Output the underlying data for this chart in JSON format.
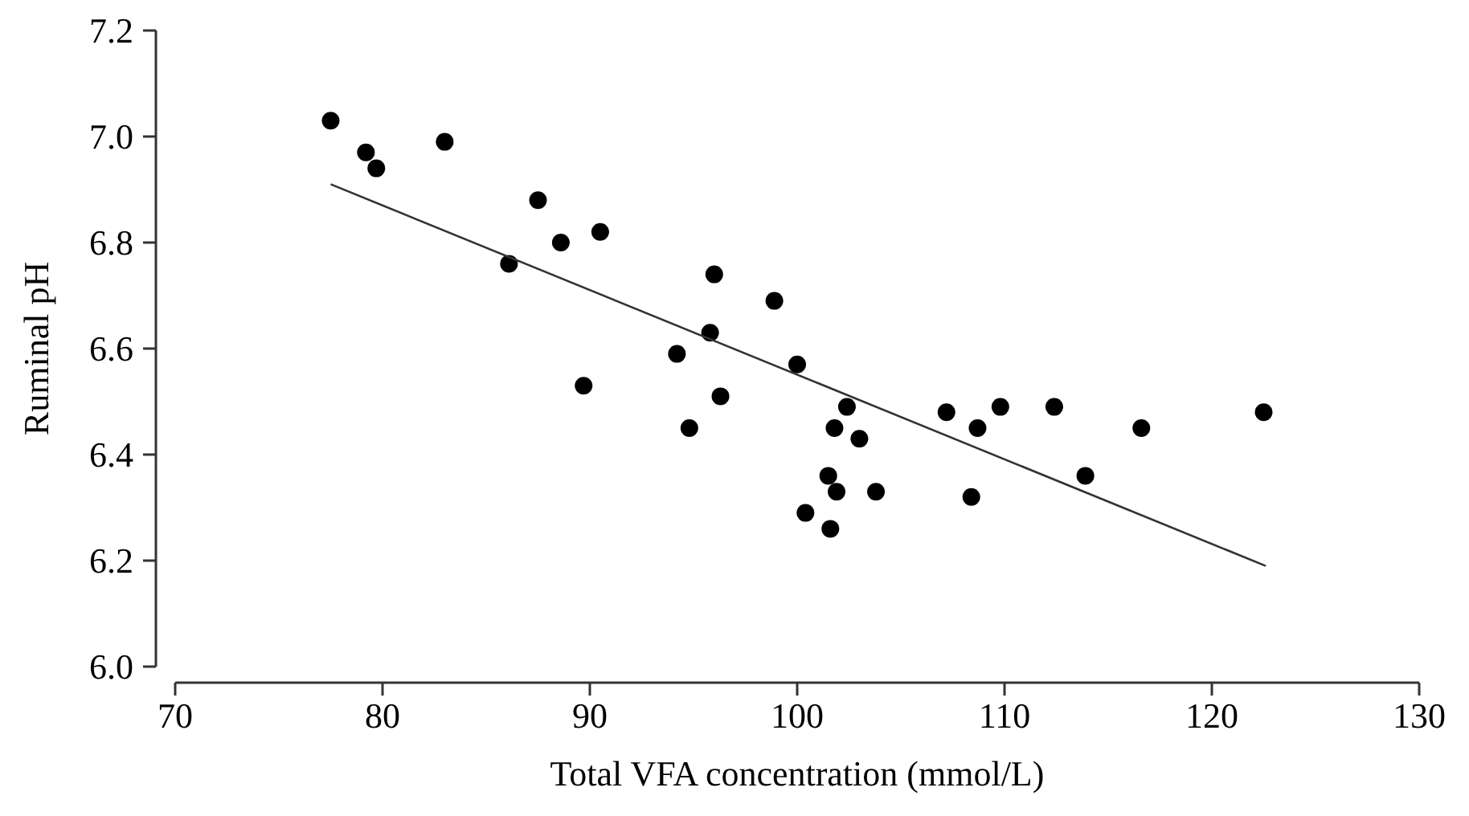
{
  "chart_data": {
    "type": "scatter",
    "xlabel": "Total VFA concentration (mmol/L)",
    "ylabel": "Ruminal pH",
    "xlim": [
      70,
      130
    ],
    "xticks": [
      70,
      80,
      90,
      100,
      110,
      120,
      130
    ],
    "ylim": [
      6.0,
      7.2
    ],
    "yticks": [
      {
        "value": 6.0,
        "label": "6.0"
      },
      6.2,
      6.4,
      6.6,
      6.8,
      {
        "value": 7.0,
        "label": "7.0"
      },
      7.2
    ],
    "grid": false,
    "series": [
      {
        "color": "#000000",
        "marker": "circle",
        "x": [
          77.5,
          79.2,
          79.7,
          83.0,
          86.1,
          87.5,
          88.6,
          90.5,
          89.7,
          94.2,
          94.8,
          95.8,
          96.0,
          96.3,
          98.9,
          100.0,
          102.4,
          101.8,
          103.0,
          101.5,
          101.9,
          103.8,
          100.4,
          101.6,
          107.2,
          108.7,
          109.8,
          108.4,
          112.4,
          113.9,
          116.6,
          122.5
        ],
        "values": [
          7.03,
          6.97,
          6.94,
          6.99,
          6.76,
          6.88,
          6.8,
          6.82,
          6.53,
          6.59,
          6.45,
          6.63,
          6.74,
          6.51,
          6.69,
          6.57,
          6.49,
          6.45,
          6.43,
          6.36,
          6.33,
          6.33,
          6.29,
          6.26,
          6.48,
          6.45,
          6.49,
          6.32,
          6.49,
          6.36,
          6.45,
          6.48
        ]
      },
      {
        "type": "line",
        "color": "#333333",
        "line_style": "solid",
        "x": [
          77.5,
          122.6
        ],
        "values": [
          6.91,
          6.19
        ]
      }
    ]
  }
}
